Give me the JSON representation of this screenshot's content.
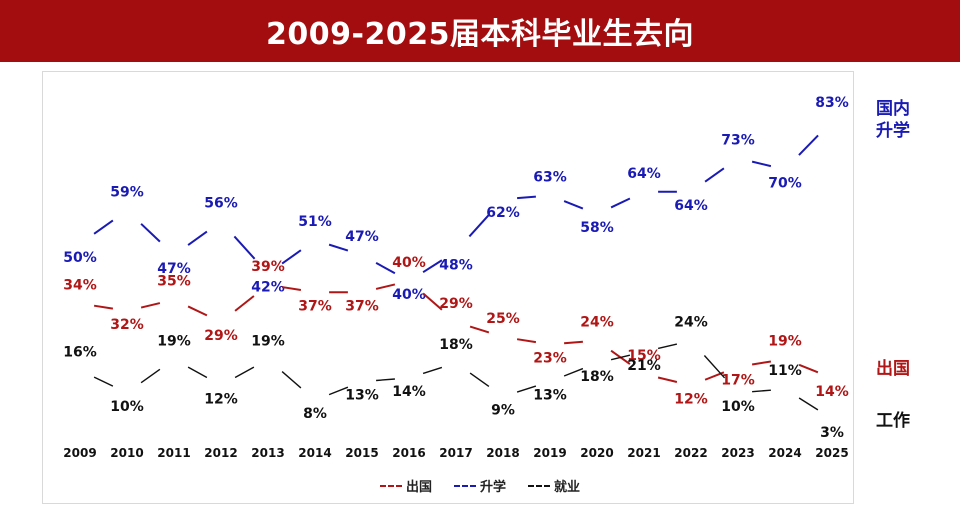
{
  "title": "2009-2025届本科毕业生去向",
  "side_labels": {
    "domestic": "国内\n升学",
    "abroad": "出国",
    "work": "工作"
  },
  "legend": [
    {
      "key": "abroad",
      "label": "出国",
      "color": "#b01616"
    },
    {
      "key": "domestic",
      "label": "升学",
      "color": "#1a1ab5"
    },
    {
      "key": "work",
      "label": "就业",
      "color": "#111111"
    }
  ],
  "chart_data": {
    "type": "line",
    "x": [
      "2009",
      "2010",
      "2011",
      "2012",
      "2013",
      "2014",
      "2015",
      "2016",
      "2017",
      "2018",
      "2019",
      "2020",
      "2021",
      "2022",
      "2023",
      "2024",
      "2025"
    ],
    "ylim": [
      0,
      90
    ],
    "grid": false,
    "legend_position": "bottom",
    "series": [
      {
        "key": "domestic",
        "name": "升学",
        "color": "#1a1ab5",
        "values": [
          50,
          59,
          47,
          56,
          42,
          51,
          47,
          40,
          48,
          62,
          63,
          58,
          64,
          64,
          73,
          70,
          83
        ]
      },
      {
        "key": "abroad",
        "name": "出国",
        "color": "#b01616",
        "values": [
          34,
          32,
          35,
          29,
          39,
          37,
          37,
          40,
          29,
          25,
          23,
          24,
          15,
          12,
          17,
          19,
          14
        ]
      },
      {
        "key": "work",
        "name": "就业",
        "color": "#111111",
        "values": [
          16,
          10,
          19,
          12,
          19,
          8,
          13,
          14,
          18,
          9,
          13,
          18,
          21,
          24,
          10,
          11,
          3
        ]
      }
    ]
  }
}
